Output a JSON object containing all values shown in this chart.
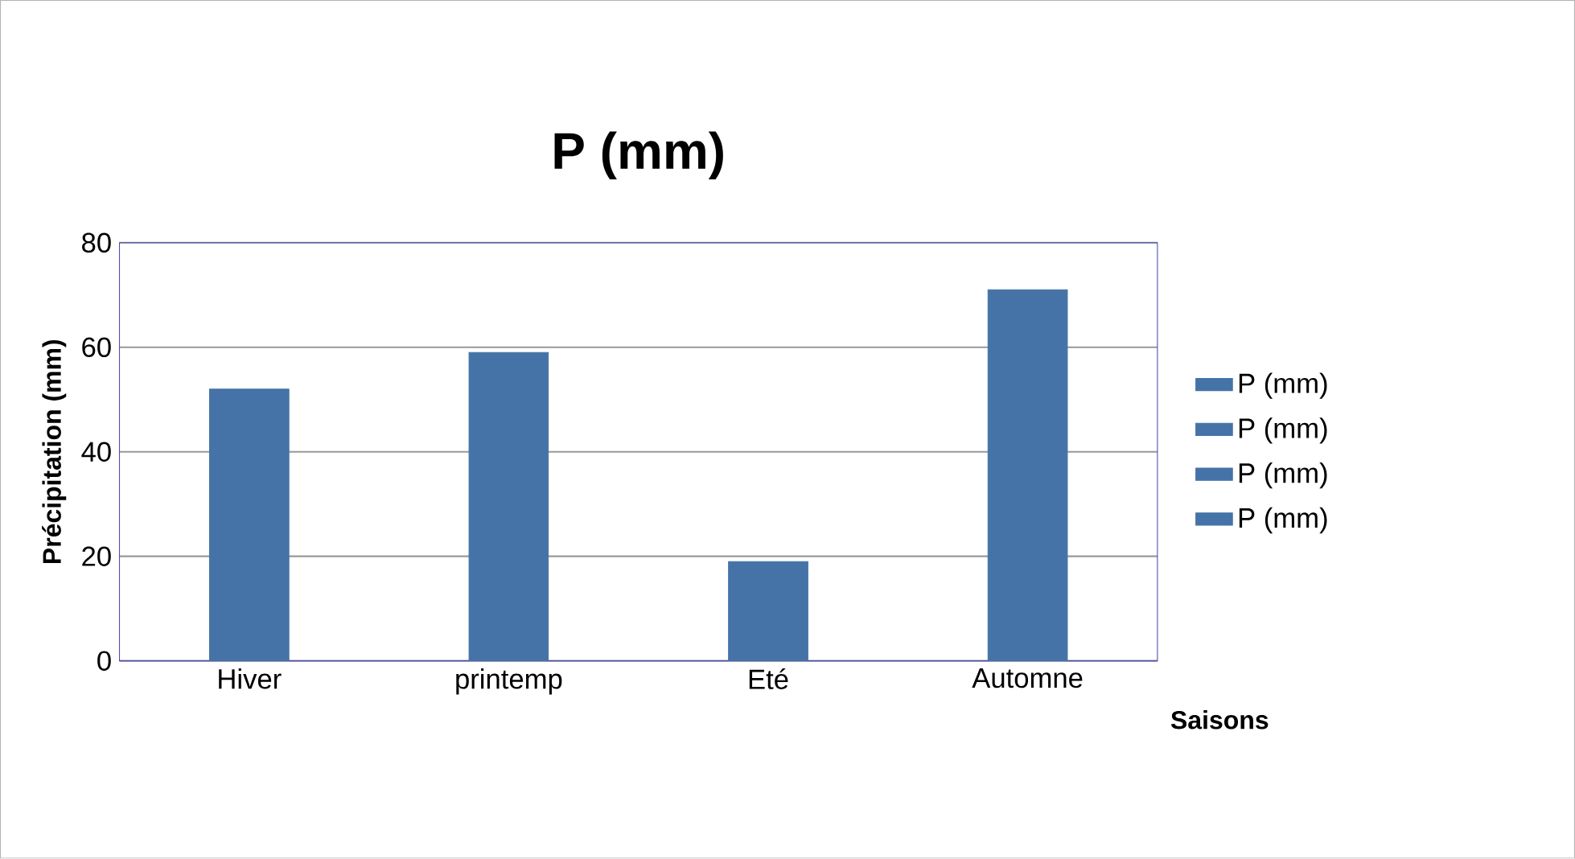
{
  "chart_data": {
    "type": "bar",
    "title": "P (mm)",
    "xlabel": "Saisons",
    "ylabel": "Précipitation (mm)",
    "categories": [
      "Hiver",
      "printemp",
      "Eté",
      "Automne"
    ],
    "series": [
      {
        "name": "P (mm)",
        "color": "#4573a7",
        "values": [
          52,
          null,
          null,
          null
        ]
      },
      {
        "name": "P (mm)",
        "color": "#4573a7",
        "values": [
          null,
          59,
          null,
          null
        ]
      },
      {
        "name": "P (mm)",
        "color": "#4573a7",
        "values": [
          null,
          null,
          19,
          null
        ]
      },
      {
        "name": "P (mm)",
        "color": "#4573a7",
        "values": [
          null,
          null,
          null,
          71
        ]
      }
    ],
    "ylim": [
      0,
      80
    ],
    "yticks": [
      0,
      20,
      40,
      60,
      80
    ],
    "grid": "y",
    "legend": "right"
  }
}
